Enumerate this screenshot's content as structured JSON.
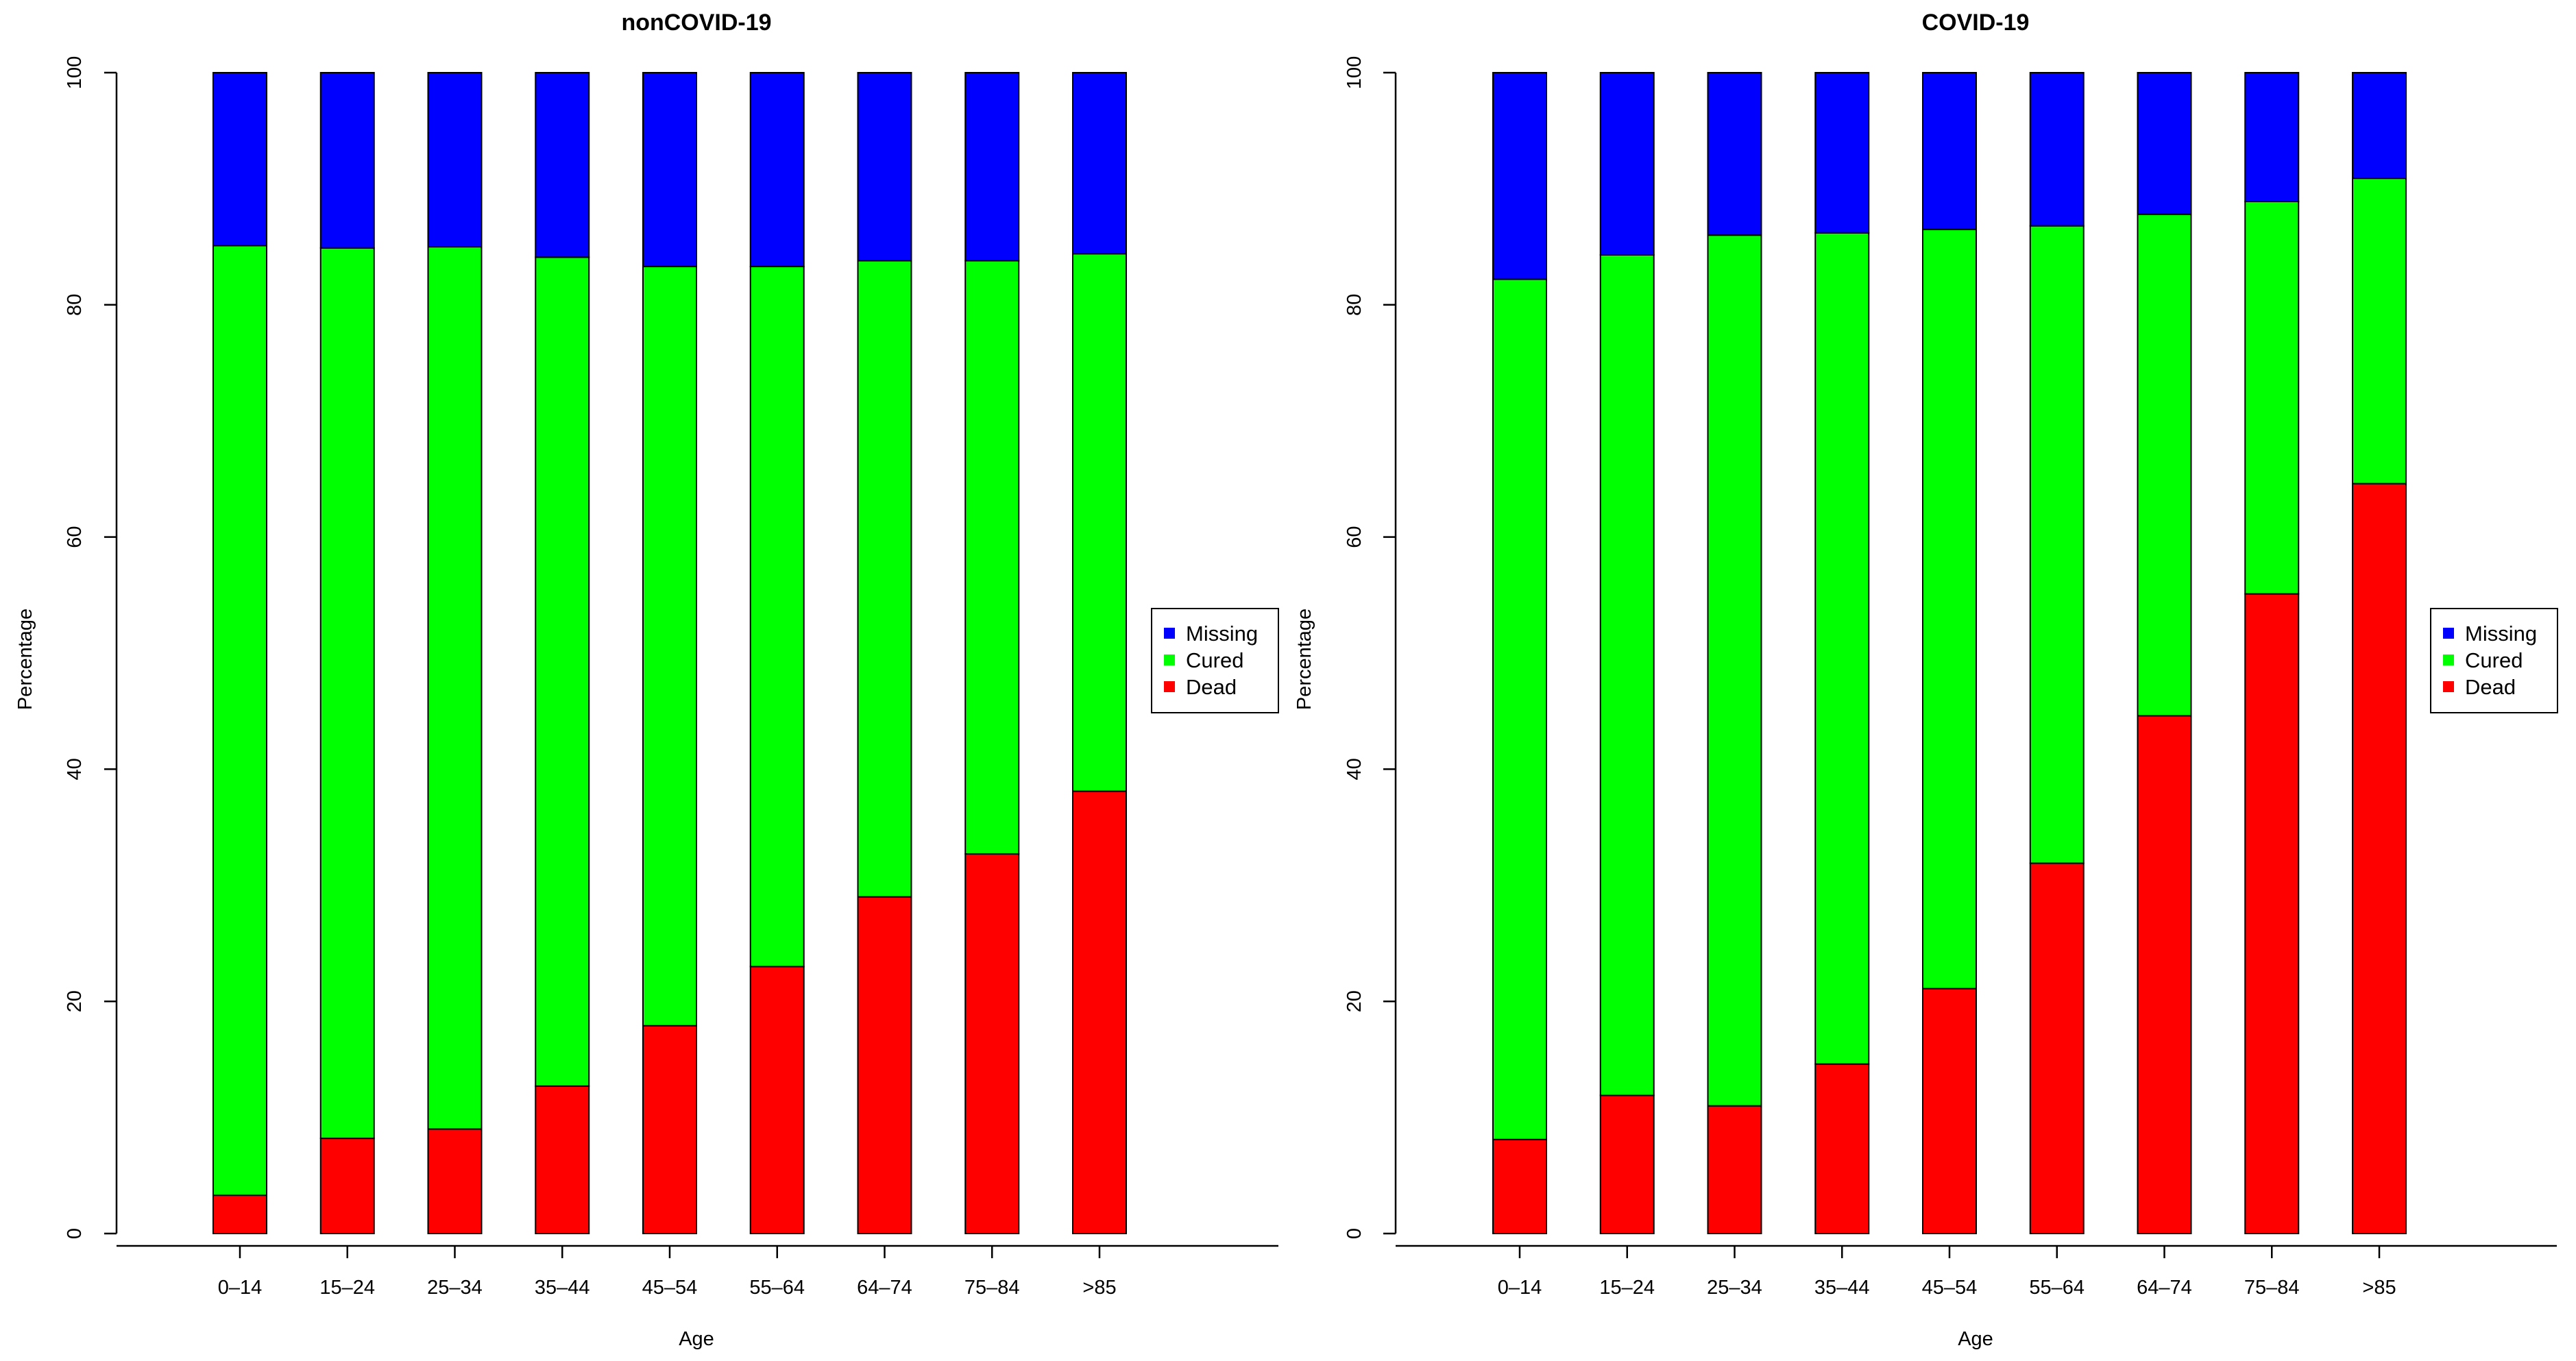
{
  "chart_data": [
    {
      "type": "bar",
      "stacked": true,
      "stack_unit": "percent",
      "title": "nonCOVID-19",
      "xlabel": "Age",
      "ylabel": "Percentage",
      "ylim": [
        0,
        100
      ],
      "yticks": [
        "0",
        "20",
        "40",
        "60",
        "80",
        "100"
      ],
      "categories": [
        "0–14",
        "15–24",
        "25–34",
        "35–44",
        "45–54",
        "55–64",
        "64–74",
        "75–84",
        ">85"
      ],
      "series": [
        {
          "name": "Dead",
          "color": "#ff0000",
          "values": [
            3.3,
            8.2,
            9.0,
            12.7,
            17.9,
            23.0,
            29.0,
            32.7,
            38.1
          ]
        },
        {
          "name": "Cured",
          "color": "#00ff00",
          "values": [
            81.8,
            76.7,
            76.0,
            71.4,
            65.4,
            60.3,
            54.8,
            51.1,
            46.3
          ]
        },
        {
          "name": "Missing",
          "color": "#0000ff",
          "values": [
            14.9,
            15.1,
            15.0,
            15.9,
            16.7,
            16.7,
            16.2,
            16.2,
            15.6
          ]
        }
      ],
      "legend": {
        "position": "right",
        "entries": [
          "Missing",
          "Cured",
          "Dead"
        ]
      }
    },
    {
      "type": "bar",
      "stacked": true,
      "stack_unit": "percent",
      "title": "COVID-19",
      "xlabel": "Age",
      "ylabel": "Percentage",
      "ylim": [
        0,
        100
      ],
      "yticks": [
        "0",
        "20",
        "40",
        "60",
        "80",
        "100"
      ],
      "categories": [
        "0–14",
        "15–24",
        "25–34",
        "35–44",
        "45–54",
        "55–64",
        "64–74",
        "75–84",
        ">85"
      ],
      "series": [
        {
          "name": "Dead",
          "color": "#ff0000",
          "values": [
            8.1,
            11.9,
            11.0,
            14.6,
            21.1,
            31.9,
            44.6,
            55.1,
            64.6
          ]
        },
        {
          "name": "Cured",
          "color": "#00ff00",
          "values": [
            74.1,
            72.4,
            75.0,
            71.6,
            65.4,
            54.9,
            43.2,
            33.8,
            26.3
          ]
        },
        {
          "name": "Missing",
          "color": "#0000ff",
          "values": [
            17.8,
            15.7,
            14.0,
            13.8,
            13.5,
            13.2,
            12.2,
            11.1,
            9.1
          ]
        }
      ],
      "legend": {
        "position": "right",
        "entries": [
          "Missing",
          "Cured",
          "Dead"
        ]
      }
    }
  ]
}
